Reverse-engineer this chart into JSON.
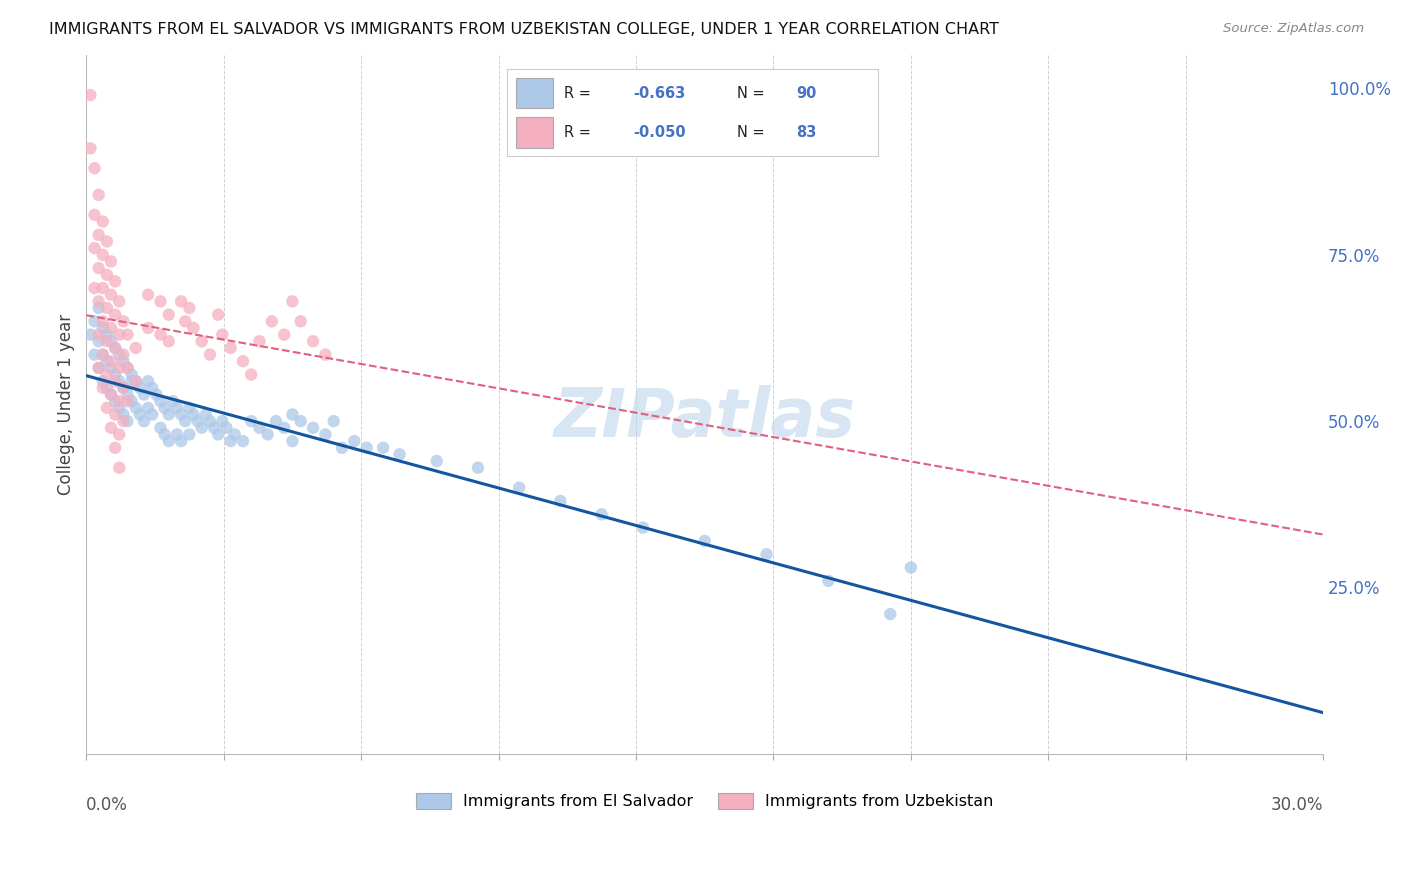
{
  "title": "IMMIGRANTS FROM EL SALVADOR VS IMMIGRANTS FROM UZBEKISTAN COLLEGE, UNDER 1 YEAR CORRELATION CHART",
  "source": "Source: ZipAtlas.com",
  "ylabel": "College, Under 1 year",
  "el_salvador_color": "#adc8e8",
  "uzbekistan_color": "#f4afc0",
  "el_salvador_line_color": "#1455a0",
  "uzbekistan_line_color": "#e06080",
  "watermark": "ZIPatlas",
  "blue_scatter": [
    [
      0.001,
      0.63
    ],
    [
      0.002,
      0.65
    ],
    [
      0.002,
      0.6
    ],
    [
      0.003,
      0.67
    ],
    [
      0.003,
      0.62
    ],
    [
      0.003,
      0.58
    ],
    [
      0.004,
      0.64
    ],
    [
      0.004,
      0.6
    ],
    [
      0.004,
      0.56
    ],
    [
      0.005,
      0.63
    ],
    [
      0.005,
      0.59
    ],
    [
      0.005,
      0.55
    ],
    [
      0.006,
      0.62
    ],
    [
      0.006,
      0.58
    ],
    [
      0.006,
      0.54
    ],
    [
      0.007,
      0.61
    ],
    [
      0.007,
      0.57
    ],
    [
      0.007,
      0.53
    ],
    [
      0.008,
      0.6
    ],
    [
      0.008,
      0.56
    ],
    [
      0.008,
      0.52
    ],
    [
      0.009,
      0.59
    ],
    [
      0.009,
      0.55
    ],
    [
      0.009,
      0.51
    ],
    [
      0.01,
      0.58
    ],
    [
      0.01,
      0.54
    ],
    [
      0.01,
      0.5
    ],
    [
      0.011,
      0.57
    ],
    [
      0.011,
      0.53
    ],
    [
      0.011,
      0.56
    ],
    [
      0.012,
      0.56
    ],
    [
      0.012,
      0.52
    ],
    [
      0.013,
      0.55
    ],
    [
      0.013,
      0.51
    ],
    [
      0.014,
      0.54
    ],
    [
      0.014,
      0.5
    ],
    [
      0.015,
      0.56
    ],
    [
      0.015,
      0.52
    ],
    [
      0.016,
      0.55
    ],
    [
      0.016,
      0.51
    ],
    [
      0.017,
      0.54
    ],
    [
      0.018,
      0.53
    ],
    [
      0.018,
      0.49
    ],
    [
      0.019,
      0.52
    ],
    [
      0.019,
      0.48
    ],
    [
      0.02,
      0.51
    ],
    [
      0.02,
      0.47
    ],
    [
      0.021,
      0.53
    ],
    [
      0.022,
      0.52
    ],
    [
      0.022,
      0.48
    ],
    [
      0.023,
      0.51
    ],
    [
      0.023,
      0.47
    ],
    [
      0.024,
      0.5
    ],
    [
      0.025,
      0.52
    ],
    [
      0.025,
      0.48
    ],
    [
      0.026,
      0.51
    ],
    [
      0.027,
      0.5
    ],
    [
      0.028,
      0.49
    ],
    [
      0.029,
      0.51
    ],
    [
      0.03,
      0.5
    ],
    [
      0.031,
      0.49
    ],
    [
      0.032,
      0.48
    ],
    [
      0.033,
      0.5
    ],
    [
      0.034,
      0.49
    ],
    [
      0.035,
      0.47
    ],
    [
      0.036,
      0.48
    ],
    [
      0.038,
      0.47
    ],
    [
      0.04,
      0.5
    ],
    [
      0.042,
      0.49
    ],
    [
      0.044,
      0.48
    ],
    [
      0.046,
      0.5
    ],
    [
      0.048,
      0.49
    ],
    [
      0.05,
      0.51
    ],
    [
      0.05,
      0.47
    ],
    [
      0.052,
      0.5
    ],
    [
      0.055,
      0.49
    ],
    [
      0.058,
      0.48
    ],
    [
      0.06,
      0.5
    ],
    [
      0.062,
      0.46
    ],
    [
      0.065,
      0.47
    ],
    [
      0.068,
      0.46
    ],
    [
      0.072,
      0.46
    ],
    [
      0.076,
      0.45
    ],
    [
      0.085,
      0.44
    ],
    [
      0.095,
      0.43
    ],
    [
      0.105,
      0.4
    ],
    [
      0.115,
      0.38
    ],
    [
      0.125,
      0.36
    ],
    [
      0.135,
      0.34
    ],
    [
      0.15,
      0.32
    ],
    [
      0.165,
      0.3
    ],
    [
      0.18,
      0.26
    ],
    [
      0.195,
      0.21
    ],
    [
      0.2,
      0.28
    ]
  ],
  "pink_scatter": [
    [
      0.001,
      0.99
    ],
    [
      0.001,
      0.91
    ],
    [
      0.002,
      0.88
    ],
    [
      0.002,
      0.81
    ],
    [
      0.002,
      0.76
    ],
    [
      0.002,
      0.7
    ],
    [
      0.003,
      0.84
    ],
    [
      0.003,
      0.78
    ],
    [
      0.003,
      0.73
    ],
    [
      0.003,
      0.68
    ],
    [
      0.003,
      0.63
    ],
    [
      0.003,
      0.58
    ],
    [
      0.004,
      0.8
    ],
    [
      0.004,
      0.75
    ],
    [
      0.004,
      0.7
    ],
    [
      0.004,
      0.65
    ],
    [
      0.004,
      0.6
    ],
    [
      0.004,
      0.55
    ],
    [
      0.005,
      0.77
    ],
    [
      0.005,
      0.72
    ],
    [
      0.005,
      0.67
    ],
    [
      0.005,
      0.62
    ],
    [
      0.005,
      0.57
    ],
    [
      0.005,
      0.52
    ],
    [
      0.006,
      0.74
    ],
    [
      0.006,
      0.69
    ],
    [
      0.006,
      0.64
    ],
    [
      0.006,
      0.59
    ],
    [
      0.006,
      0.54
    ],
    [
      0.006,
      0.49
    ],
    [
      0.007,
      0.71
    ],
    [
      0.007,
      0.66
    ],
    [
      0.007,
      0.61
    ],
    [
      0.007,
      0.56
    ],
    [
      0.007,
      0.51
    ],
    [
      0.007,
      0.46
    ],
    [
      0.008,
      0.68
    ],
    [
      0.008,
      0.63
    ],
    [
      0.008,
      0.58
    ],
    [
      0.008,
      0.53
    ],
    [
      0.008,
      0.48
    ],
    [
      0.008,
      0.43
    ],
    [
      0.009,
      0.65
    ],
    [
      0.009,
      0.6
    ],
    [
      0.009,
      0.55
    ],
    [
      0.009,
      0.5
    ],
    [
      0.01,
      0.63
    ],
    [
      0.01,
      0.58
    ],
    [
      0.01,
      0.53
    ],
    [
      0.012,
      0.61
    ],
    [
      0.012,
      0.56
    ],
    [
      0.015,
      0.69
    ],
    [
      0.015,
      0.64
    ],
    [
      0.018,
      0.68
    ],
    [
      0.018,
      0.63
    ],
    [
      0.02,
      0.66
    ],
    [
      0.02,
      0.62
    ],
    [
      0.023,
      0.68
    ],
    [
      0.024,
      0.65
    ],
    [
      0.025,
      0.67
    ],
    [
      0.026,
      0.64
    ],
    [
      0.028,
      0.62
    ],
    [
      0.03,
      0.6
    ],
    [
      0.032,
      0.66
    ],
    [
      0.033,
      0.63
    ],
    [
      0.035,
      0.61
    ],
    [
      0.038,
      0.59
    ],
    [
      0.04,
      0.57
    ],
    [
      0.042,
      0.62
    ],
    [
      0.045,
      0.65
    ],
    [
      0.048,
      0.63
    ],
    [
      0.05,
      0.68
    ],
    [
      0.052,
      0.65
    ],
    [
      0.055,
      0.62
    ],
    [
      0.058,
      0.6
    ]
  ],
  "blue_line_x0": 0.0,
  "blue_line_y0": 0.635,
  "blue_line_x1": 0.2,
  "blue_line_y1": 0.28,
  "pink_line_x0": 0.0,
  "pink_line_y0": 0.695,
  "pink_line_x1": 0.058,
  "pink_line_y1": 0.665,
  "x_min": 0.0,
  "x_max": 0.3,
  "y_min": 0.0,
  "y_max": 1.05
}
